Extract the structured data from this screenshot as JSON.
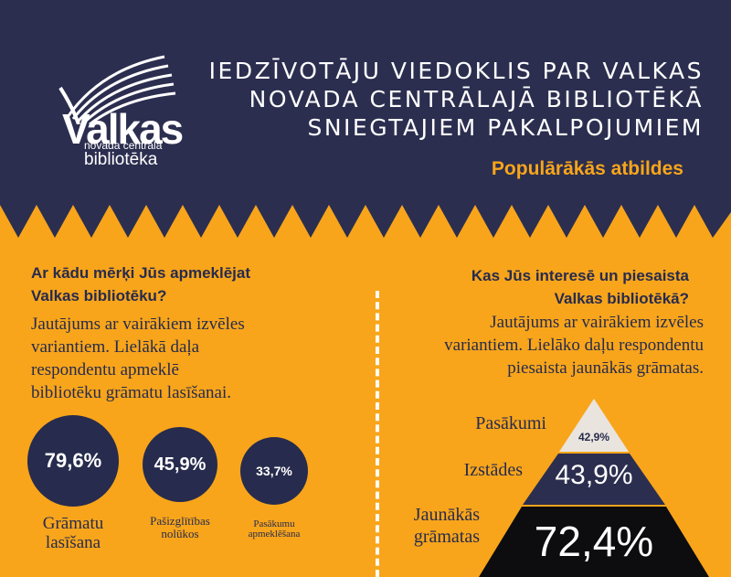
{
  "header": {
    "title_lines": [
      "IEDZĪVOTĀJU VIEDOKLIS PAR VALKAS",
      "NOVADA CENTRĀLAJĀ BIBLIOTĒKĀ",
      "SNIEGTAJIEM PAKALPOJUMIEM"
    ],
    "subtitle": "Populārākās atbildes",
    "logo": {
      "word": "Valkas",
      "line1": "novada centrālā",
      "line2": "bibliotēka"
    }
  },
  "left": {
    "question_lines": [
      "Ar kādu mērķi Jūs apmeklējat",
      "Valkas bibliotēku?"
    ],
    "description_lines": [
      "Jautājums ar vairākiem izvēles",
      "variantiem. Lielākā daļa",
      "respondentu apmeklē",
      "bibliotēku grāmatu lasīšanai."
    ],
    "items": [
      {
        "value": "79,6%",
        "label_lines": [
          "Grāmatu",
          "lasīšana"
        ]
      },
      {
        "value": "45,9%",
        "label_lines": [
          "Pašizglītības",
          "nolūkos"
        ]
      },
      {
        "value": "33,7%",
        "label_lines": [
          "Pasākumu",
          "apmeklēšana"
        ]
      }
    ]
  },
  "right": {
    "question_lines": [
      "Kas Jūs interesē un piesaista",
      "Valkas bibliotēkā?"
    ],
    "description_lines": [
      "Jautājums ar vairākiem izvēles",
      "variantiem. Lielāko daļu respondentu",
      "piesaista jaunākās grāmatas."
    ],
    "pyramid": [
      {
        "label_lines": [
          "Pasākumi"
        ],
        "value": "42,9%"
      },
      {
        "label_lines": [
          "Izstādes"
        ],
        "value": "43,9%"
      },
      {
        "label_lines": [
          "Jaunākās",
          "grāmatas"
        ],
        "value": "72,4%"
      }
    ]
  },
  "colors": {
    "navy": "#2b2e4f",
    "orange": "#f8a51b",
    "light": "#e9e4de",
    "dark": "#0d0d10"
  }
}
